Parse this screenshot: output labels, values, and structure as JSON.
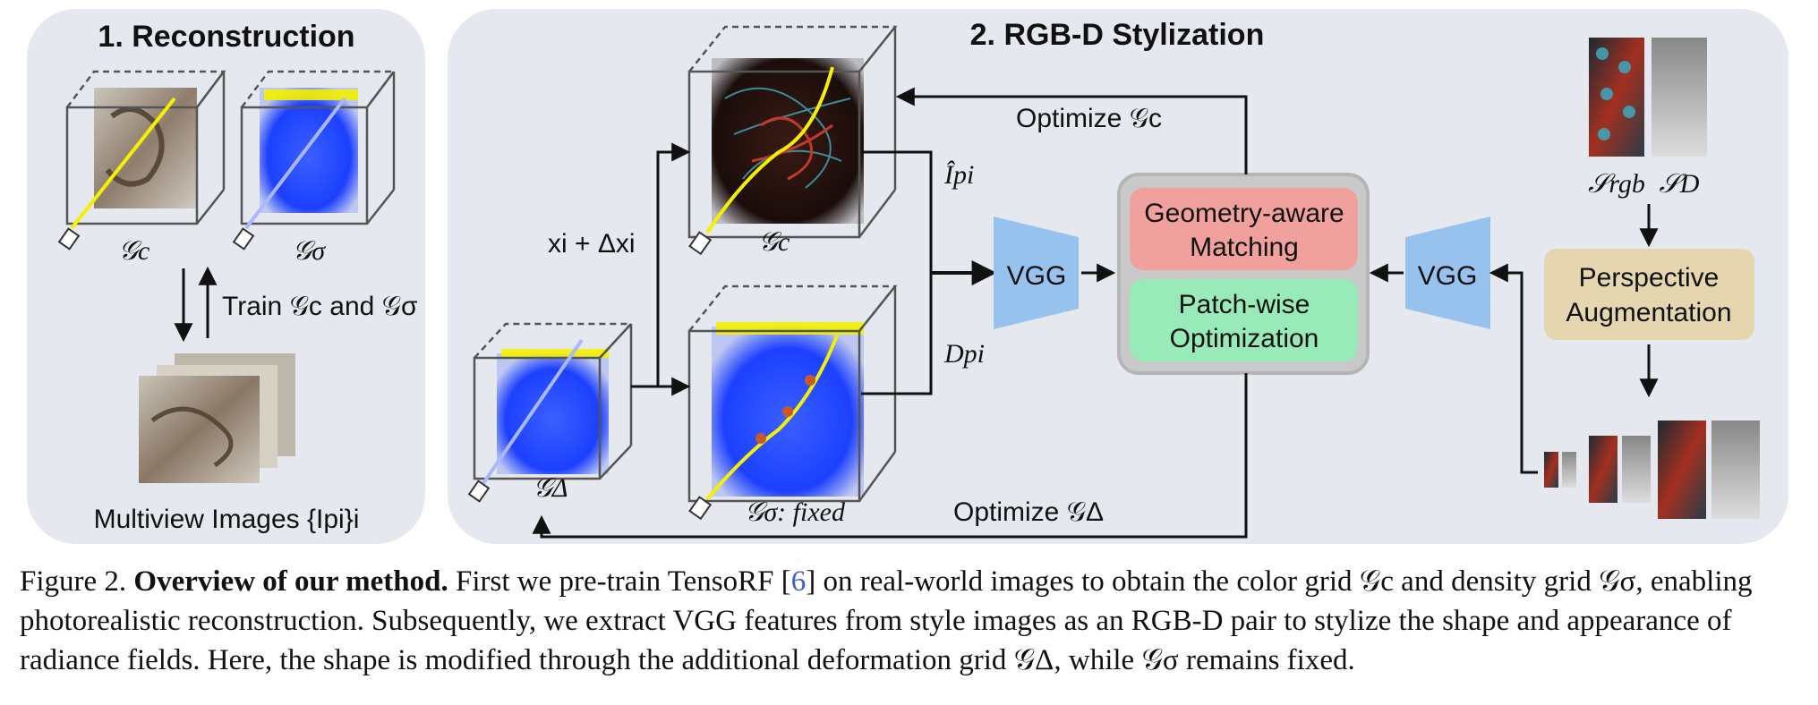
{
  "panels": {
    "reconstruction": {
      "title": "1. Reconstruction"
    },
    "stylization": {
      "title": "2. RGB-D Stylization"
    }
  },
  "labels": {
    "g_c": "𝒢c",
    "g_sigma": "𝒢σ",
    "g_delta": "𝒢Δ",
    "g_sigma_fixed": "𝒢σ: fixed",
    "train": "Train 𝒢c and 𝒢σ",
    "multiview": "Multiview Images {Ipi}i",
    "offset": "xi + Δxi",
    "i_hat": "Îpi",
    "d_p": "Dpi",
    "optimize_gc": "Optimize 𝒢c",
    "optimize_gdelta": "Optimize 𝒢Δ",
    "vgg": "VGG",
    "geometry_matching": [
      "Geometry-aware",
      "Matching"
    ],
    "patch_optimization": [
      "Patch-wise",
      "Optimization"
    ],
    "perspective_aug": [
      "Perspective",
      "Augmentation"
    ],
    "s_rgb": "𝒮rgb",
    "s_d": "𝒮D"
  },
  "colors": {
    "panel_bg": "#e6e8ef",
    "geometry_box": "#f0a19d",
    "patch_box": "#98eab8",
    "augmentation_box": "#e6d6af",
    "vgg": "#98c2ee",
    "density_blue": "#1c40ff",
    "highlight_yellow": "#f4f000"
  },
  "caption": {
    "figure_num": "Figure 2.",
    "bold_title": "Overview of our method.",
    "text_before_cite": "First we pre-train TensoRF [",
    "cite": "6",
    "text_after_cite": "] on real-world images to obtain the color grid 𝒢c and density grid 𝒢σ, enabling photorealistic reconstruction. Subsequently, we extract VGG features from style images as an RGB-D pair to stylize the shape and appearance of radiance fields. Here, the shape is modified through the additional deformation grid 𝒢Δ, while 𝒢σ remains fixed."
  }
}
